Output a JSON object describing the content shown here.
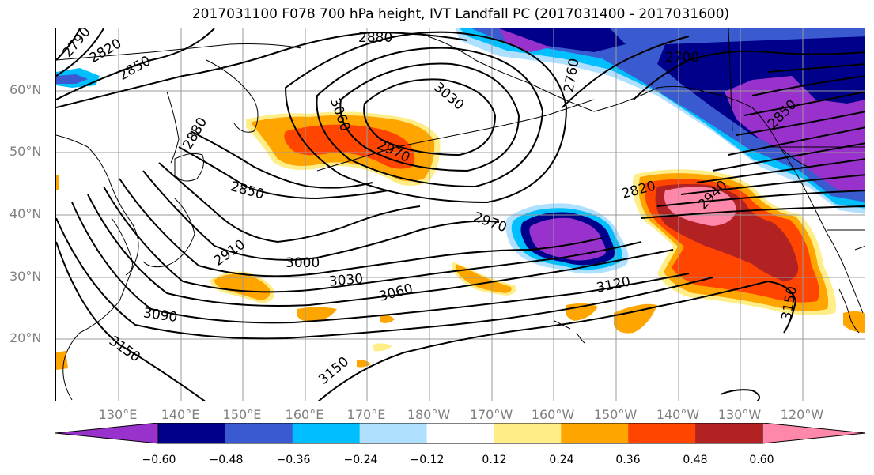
{
  "title": "2017031100 F078 700 hPa height, IVT Landfall PC (2017031400 - 2017031600)",
  "lat_labels": [
    "60°N",
    "50°N",
    "40°N",
    "30°N",
    "20°N"
  ],
  "lon_labels": [
    "130°E",
    "140°E",
    "150°E",
    "160°E",
    "170°E",
    "180°W",
    "170°W",
    "160°W",
    "150°W",
    "140°W",
    "130°W",
    "120°W"
  ],
  "contour_labels": [
    "2790",
    "2820",
    "2850",
    "2880",
    "2700",
    "2760",
    "2850",
    "3030",
    "3060",
    "2970",
    "2850",
    "2880",
    "2910",
    "2970",
    "2820",
    "2940",
    "3000",
    "3030",
    "3060",
    "3120",
    "3090",
    "3150",
    "3150",
    "3150"
  ],
  "colorbar": {
    "ticks": [
      "−0.60",
      "−0.48",
      "−0.36",
      "−0.24",
      "−0.12",
      "0.12",
      "0.24",
      "0.36",
      "0.48",
      "0.60"
    ],
    "colors": [
      "#9932cc",
      "#00008b",
      "#3a5bd0",
      "#00bfff",
      "#b0e0ff",
      "#ffffff",
      "#ffee88",
      "#ffa500",
      "#ff4500",
      "#b22222",
      "#ff88aa"
    ]
  },
  "fill_colors": {
    "purple": "#9932cc",
    "navy": "#00008b",
    "blue": "#3a5bd0",
    "cyan": "#00bfff",
    "lightblue": "#b0e0ff",
    "yellow": "#ffee88",
    "orange": "#ffa500",
    "redorange": "#ff4500",
    "firebrick": "#b22222",
    "pink": "#ff88aa"
  }
}
